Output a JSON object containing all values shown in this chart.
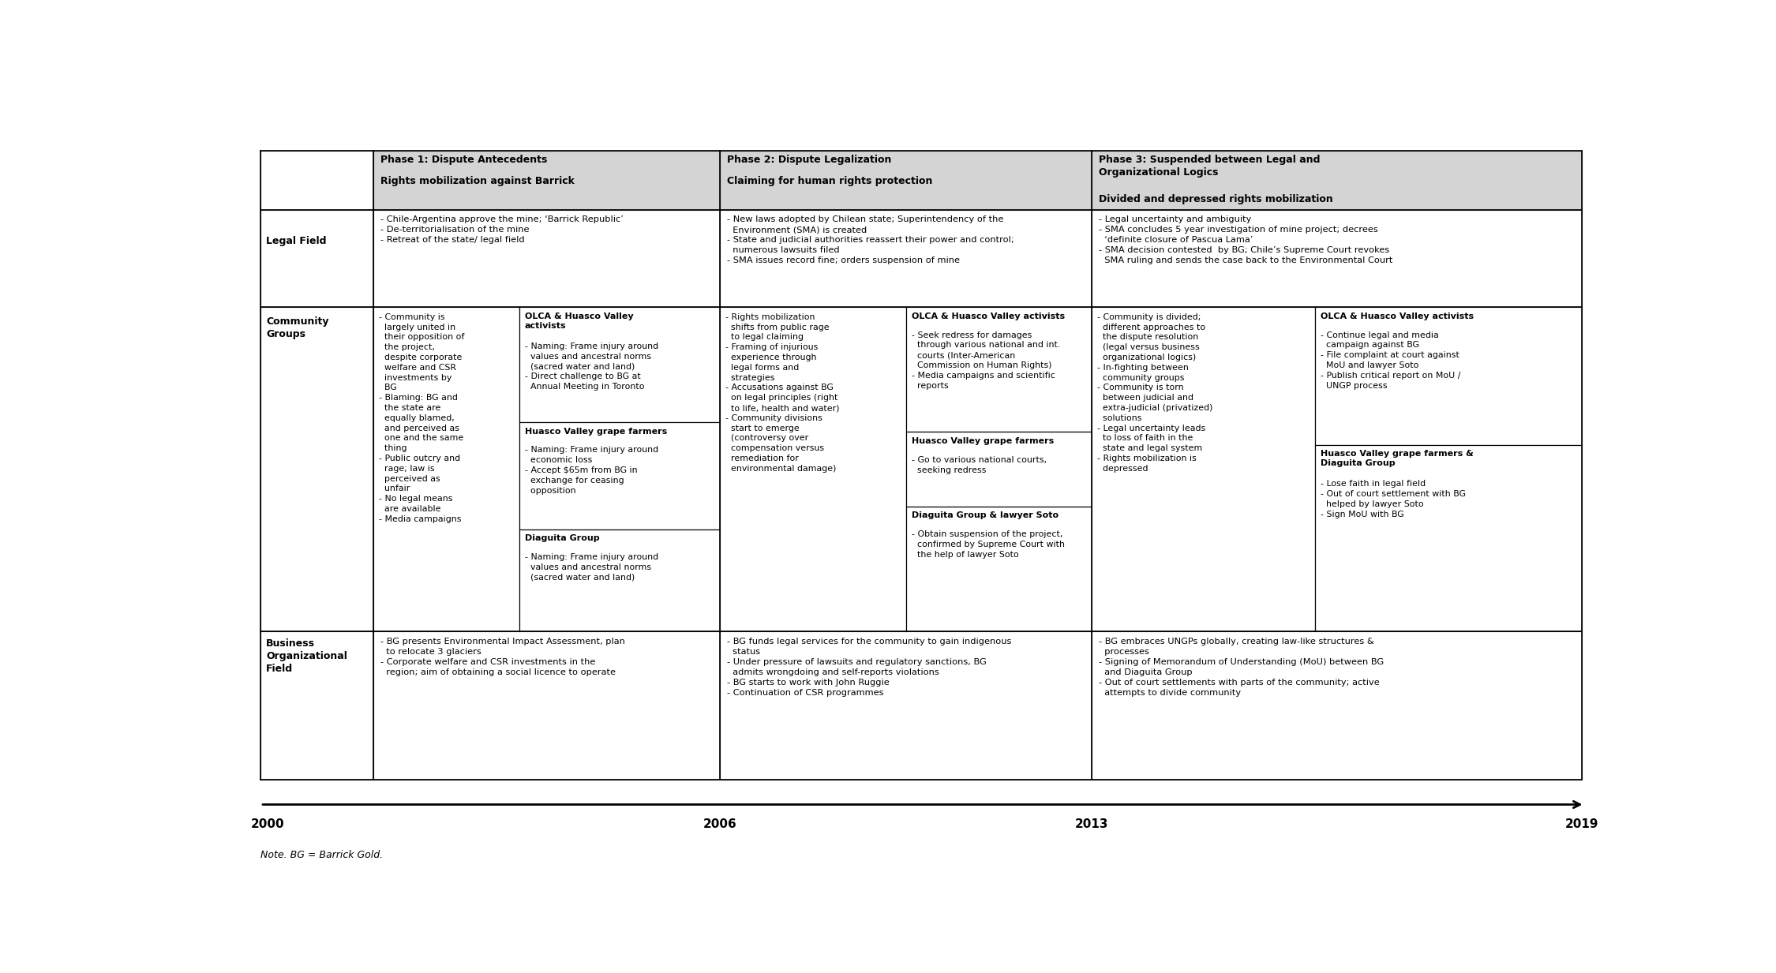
{
  "note": "Note. BG = Barrick Gold.",
  "background_color": "#ffffff",
  "header_bg": "#d4d4d4",
  "grid_color": "#000000",
  "phase1_title": "Phase 1: Dispute Antecedents",
  "phase1_subtitle": "Rights mobilization against Barrick",
  "phase2_title": "Phase 2: Dispute Legalization",
  "phase2_subtitle": "Claiming for human rights protection",
  "phase3_title": "Phase 3: Suspended between Legal and\nOrganizational Logics",
  "phase3_subtitle": "Divided and depressed rights mobilization",
  "legal_p1": "- Chile-Argentina approve the mine; ‘Barrick Republic’\n- De-territorialisation of the mine\n- Retreat of the state/ legal field",
  "legal_p2": "- New laws adopted by Chilean state; Superintendency of the\n  Environment (SMA) is created\n- State and judicial authorities reassert their power and control;\n  numerous lawsuits filed\n- SMA issues record fine; orders suspension of mine",
  "legal_p3": "- Legal uncertainty and ambiguity\n- SMA concludes 5 year investigation of mine project; decrees\n  ‘definite closure of Pascua Lama’\n- SMA decision contested  by BG; Chile’s Supreme Court revokes\n  SMA ruling and sends the case back to the Environmental Court",
  "comm_gen_p1": "- Community is\n  largely united in\n  their opposition of\n  the project,\n  despite corporate\n  welfare and CSR\n  investments by\n  BG\n- Blaming: BG and\n  the state are\n  equally blamed,\n  and perceived as\n  one and the same\n  thing\n- Public outcry and\n  rage; law is\n  perceived as\n  unfair\n- No legal means\n  are available\n- Media campaigns",
  "comm_olca_p1_title": "OLCA & Huasco Valley\nactivists",
  "comm_olca_p1": "- Naming: Frame injury around\n  values and ancestral norms\n  (sacred water and land)\n- Direct challenge to BG at\n  Annual Meeting in Toronto",
  "comm_farmers_p1_title": "Huasco Valley grape farmers",
  "comm_farmers_p1": "- Naming: Frame injury around\n  economic loss\n- Accept $65m from BG in\n  exchange for ceasing\n  opposition",
  "comm_diaguita_p1_title": "Diaguita Group",
  "comm_diaguita_p1": "- Naming: Frame injury around\n  values and ancestral norms\n  (sacred water and land)",
  "comm_gen_p2": "- Rights mobilization\n  shifts from public rage\n  to legal claiming\n- Framing of injurious\n  experience through\n  legal forms and\n  strategies\n- Accusations against BG\n  on legal principles (right\n  to life, health and water)\n- Community divisions\n  start to emerge\n  (controversy over\n  compensation versus\n  remediation for\n  environmental damage)",
  "comm_olca_p2_title": "OLCA & Huasco Valley activists",
  "comm_olca_p2": "- Seek redress for damages\n  through various national and int.\n  courts (Inter-American\n  Commission on Human Rights)\n- Media campaigns and scientific\n  reports",
  "comm_farmers_p2_title": "Huasco Valley grape farmers",
  "comm_farmers_p2": "- Go to various national courts,\n  seeking redress",
  "comm_diaguita_p2_title": "Diaguita Group & lawyer Soto",
  "comm_diaguita_p2": "- Obtain suspension of the project,\n  confirmed by Supreme Court with\n  the help of lawyer Soto",
  "comm_gen_p3": "- Community is divided;\n  different approaches to\n  the dispute resolution\n  (legal versus business\n  organizational logics)\n- In-fighting between\n  community groups\n- Community is torn\n  between judicial and\n  extra-judicial (privatized)\n  solutions\n- Legal uncertainty leads\n  to loss of faith in the\n  state and legal system\n- Rights mobilization is\n  depressed",
  "comm_olca_p3_title": "OLCA & Huasco Valley activists",
  "comm_olca_p3": "- Continue legal and media\n  campaign against BG\n- File complaint at court against\n  MoU and lawyer Soto\n- Publish critical report on MoU /\n  UNGP process",
  "comm_farmers_p3_title": "Huasco Valley grape farmers &\nDiaguita Group",
  "comm_farmers_p3": "- Lose faith in legal field\n- Out of court settlement with BG\n  helped by lawyer Soto\n- Sign MoU with BG",
  "biz_p1": "- BG presents Environmental Impact Assessment, plan\n  to relocate 3 glaciers\n- Corporate welfare and CSR investments in the\n  region; aim of obtaining a social licence to operate",
  "biz_p2": "- BG funds legal services for the community to gain indigenous\n  status\n- Under pressure of lawsuits and regulatory sanctions, BG\n  admits wrongdoing and self-reports violations\n- BG starts to work with John Ruggie\n- Continuation of CSR programmes",
  "biz_p3": "- BG embraces UNGPs globally, creating law-like structures &\n  processes\n- Signing of Memorandum of Understanding (MoU) between BG\n  and Diaguita Group\n- Out of court settlements with parts of the community; active\n  attempts to divide community",
  "years": [
    "2000",
    "2006",
    "2013",
    "2019"
  ]
}
